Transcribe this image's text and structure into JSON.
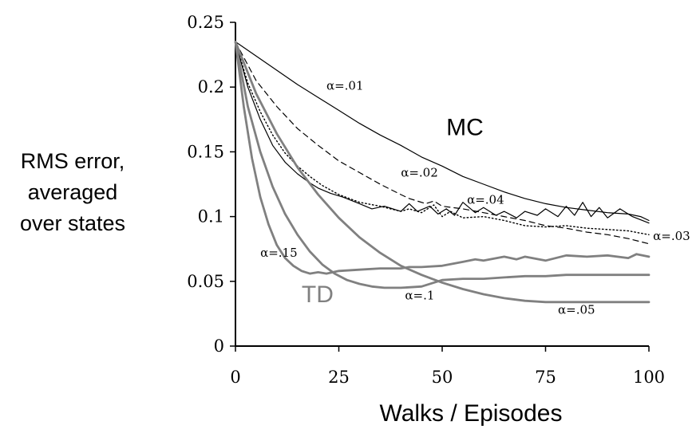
{
  "chart_data": {
    "type": "line",
    "xlabel": "Walks / Episodes",
    "ylabel_lines": [
      "RMS error,",
      "averaged",
      "over states"
    ],
    "xlim": [
      0,
      100
    ],
    "ylim": [
      0,
      0.25
    ],
    "xticks": [
      0,
      25,
      50,
      75,
      100
    ],
    "xtick_labels": [
      "0",
      "25",
      "50",
      "75",
      "100"
    ],
    "yticks": [
      0,
      0.05,
      0.1,
      0.15,
      0.2,
      0.25
    ],
    "ytick_labels": [
      "0",
      "0.05",
      "0.1",
      "0.15",
      "0.2",
      "0.25"
    ],
    "grid": false,
    "group_labels": [
      {
        "text": "MC",
        "color": "#000000",
        "x": 51,
        "y": 0.163
      },
      {
        "text": "TD",
        "color": "#808080",
        "x": 16,
        "y": 0.034
      }
    ],
    "series": [
      {
        "name": "α=.01",
        "method": "MC",
        "alpha": 0.01,
        "color": "#000000",
        "style": "solid",
        "width": 1.2,
        "label": {
          "text": "α=.01",
          "x": 22,
          "y": 0.198
        },
        "x": [
          0,
          5,
          10,
          15,
          20,
          25,
          30,
          35,
          40,
          45,
          50,
          55,
          60,
          65,
          70,
          75,
          80,
          85,
          90,
          95,
          98,
          100
        ],
        "y": [
          0.235,
          0.224,
          0.213,
          0.202,
          0.192,
          0.182,
          0.172,
          0.163,
          0.155,
          0.146,
          0.139,
          0.131,
          0.125,
          0.119,
          0.114,
          0.11,
          0.107,
          0.105,
          0.103,
          0.102,
          0.1,
          0.097
        ]
      },
      {
        "name": "α=.02",
        "method": "MC",
        "alpha": 0.02,
        "color": "#000000",
        "style": "dashed",
        "width": 1.2,
        "label": {
          "text": "α=.02",
          "x": 40,
          "y": 0.131
        },
        "x": [
          0,
          5,
          10,
          15,
          20,
          25,
          30,
          35,
          40,
          42,
          44,
          46,
          48,
          50,
          55,
          60,
          65,
          70,
          75,
          80,
          85,
          90,
          95,
          100
        ],
        "y": [
          0.235,
          0.205,
          0.185,
          0.168,
          0.155,
          0.143,
          0.134,
          0.125,
          0.117,
          0.114,
          0.112,
          0.11,
          0.112,
          0.108,
          0.106,
          0.103,
          0.1,
          0.097,
          0.093,
          0.091,
          0.088,
          0.086,
          0.083,
          0.079
        ]
      },
      {
        "name": "α=.03",
        "method": "MC",
        "alpha": 0.03,
        "color": "#000000",
        "style": "dotted",
        "width": 1.4,
        "label": {
          "text": "α=.03",
          "x": 101,
          "y": 0.082
        },
        "x": [
          0,
          3,
          6,
          9,
          12,
          15,
          18,
          21,
          25,
          30,
          35,
          40,
          42,
          45,
          48,
          50,
          52,
          55,
          60,
          65,
          70,
          75,
          80,
          85,
          90,
          95,
          100
        ],
        "y": [
          0.235,
          0.203,
          0.181,
          0.163,
          0.149,
          0.139,
          0.131,
          0.124,
          0.117,
          0.111,
          0.108,
          0.104,
          0.106,
          0.103,
          0.109,
          0.1,
          0.104,
          0.099,
          0.1,
          0.097,
          0.093,
          0.092,
          0.093,
          0.091,
          0.09,
          0.089,
          0.086
        ]
      },
      {
        "name": "α=.04",
        "method": "MC",
        "alpha": 0.04,
        "color": "#000000",
        "style": "solid",
        "width": 1.2,
        "label": {
          "text": "α=.04",
          "x": 56,
          "y": 0.11
        },
        "x": [
          0,
          3,
          6,
          9,
          12,
          15,
          18,
          20,
          23,
          26,
          30,
          33,
          36,
          40,
          42,
          44,
          47,
          49,
          51,
          53,
          55,
          58,
          60,
          63,
          65,
          68,
          70,
          73,
          75,
          78,
          80,
          82,
          84,
          86,
          88,
          90,
          93,
          96,
          100
        ],
        "y": [
          0.235,
          0.2,
          0.175,
          0.155,
          0.142,
          0.133,
          0.126,
          0.122,
          0.118,
          0.115,
          0.11,
          0.106,
          0.108,
          0.104,
          0.11,
          0.104,
          0.108,
          0.102,
          0.106,
          0.101,
          0.111,
          0.103,
          0.107,
          0.101,
          0.104,
          0.099,
          0.104,
          0.101,
          0.106,
          0.1,
          0.108,
          0.101,
          0.111,
          0.1,
          0.107,
          0.099,
          0.106,
          0.1,
          0.095
        ]
      },
      {
        "name": "α=.05",
        "method": "TD",
        "alpha": 0.05,
        "color": "#808080",
        "style": "solid",
        "width": 2.8,
        "label": {
          "text": "α=.05",
          "x": 78,
          "y": 0.025
        },
        "x": [
          0,
          5,
          10,
          15,
          20,
          25,
          30,
          35,
          40,
          45,
          50,
          55,
          60,
          65,
          70,
          75,
          80,
          85,
          90,
          95,
          100
        ],
        "y": [
          0.235,
          0.195,
          0.164,
          0.138,
          0.117,
          0.099,
          0.084,
          0.072,
          0.062,
          0.055,
          0.049,
          0.044,
          0.04,
          0.037,
          0.035,
          0.034,
          0.034,
          0.034,
          0.034,
          0.034,
          0.034
        ]
      },
      {
        "name": "α=.1",
        "method": "TD",
        "alpha": 0.1,
        "color": "#808080",
        "style": "solid",
        "width": 2.8,
        "label": {
          "text": "α=.1",
          "x": 41,
          "y": 0.036
        },
        "x": [
          0,
          3,
          6,
          9,
          12,
          15,
          18,
          21,
          24,
          27,
          30,
          33,
          36,
          40,
          45,
          50,
          55,
          60,
          65,
          70,
          75,
          80,
          85,
          90,
          95,
          100
        ],
        "y": [
          0.235,
          0.185,
          0.15,
          0.123,
          0.102,
          0.086,
          0.073,
          0.063,
          0.056,
          0.051,
          0.048,
          0.046,
          0.045,
          0.045,
          0.046,
          0.051,
          0.052,
          0.052,
          0.053,
          0.054,
          0.054,
          0.055,
          0.055,
          0.055,
          0.055,
          0.055
        ]
      },
      {
        "name": "α=.15",
        "method": "TD",
        "alpha": 0.15,
        "color": "#808080",
        "style": "solid",
        "width": 2.8,
        "label": {
          "text": "α=.15",
          "x": 6,
          "y": 0.069
        },
        "x": [
          0,
          2,
          4,
          6,
          8,
          10,
          12,
          14,
          16,
          18,
          20,
          22,
          25,
          30,
          35,
          40,
          42,
          45,
          50,
          55,
          58,
          60,
          65,
          68,
          70,
          75,
          80,
          85,
          90,
          95,
          97,
          100
        ],
        "y": [
          0.235,
          0.185,
          0.145,
          0.115,
          0.094,
          0.078,
          0.068,
          0.062,
          0.058,
          0.056,
          0.057,
          0.056,
          0.058,
          0.059,
          0.06,
          0.06,
          0.061,
          0.061,
          0.062,
          0.065,
          0.067,
          0.066,
          0.069,
          0.067,
          0.069,
          0.066,
          0.07,
          0.069,
          0.07,
          0.068,
          0.071,
          0.069
        ]
      }
    ]
  }
}
